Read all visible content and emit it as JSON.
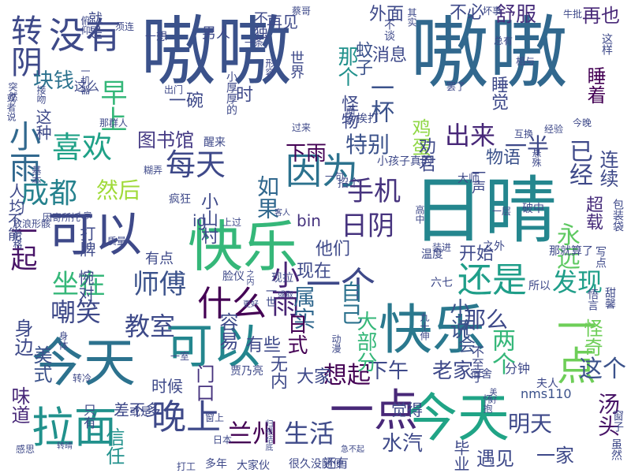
{
  "words": [
    {
      "text": "嗷嗷",
      "color": "#3b528b"
    },
    {
      "text": "嗷嗷",
      "color": "#31688e"
    },
    {
      "text": "日晴",
      "color": "#24868e"
    },
    {
      "text": "快乐",
      "color": "#35b779"
    },
    {
      "text": "快乐",
      "color": "#2a788e"
    },
    {
      "text": "今天",
      "color": "#2c728e"
    },
    {
      "text": "今天",
      "color": "#20a486"
    },
    {
      "text": "可以",
      "color": "#24868e"
    },
    {
      "text": "可以",
      "color": "#3e4989"
    },
    {
      "text": "拉面",
      "color": "#21918c"
    },
    {
      "text": "一点",
      "color": "#482878"
    },
    {
      "text": "一点",
      "color": "#6ece58"
    },
    {
      "text": "没有",
      "color": "#3e4a89"
    },
    {
      "text": "因为",
      "color": "#2c728e"
    },
    {
      "text": "什么",
      "color": "#440154"
    },
    {
      "text": "一个",
      "color": "#3e4989"
    },
    {
      "text": "还是",
      "color": "#1f9e89"
    },
    {
      "text": "晚上",
      "color": "#3e4989"
    },
    {
      "text": "喜欢",
      "color": "#1fa187"
    },
    {
      "text": "转阴",
      "color": "#3e4989"
    },
    {
      "text": "小雨",
      "color": "#31688e"
    },
    {
      "text": "每天",
      "color": "#3e4989"
    },
    {
      "text": "成都",
      "color": "#26828e"
    },
    {
      "text": "手机",
      "color": "#46337e"
    },
    {
      "text": "坐在",
      "color": "#35b779"
    },
    {
      "text": "师傅",
      "color": "#3b528b"
    },
    {
      "text": "日阴",
      "color": "#46337e"
    },
    {
      "text": "发现",
      "color": "#1f9e89"
    },
    {
      "text": "早上",
      "color": "#35b779"
    },
    {
      "text": "小雨",
      "color": "#482475"
    },
    {
      "text": "教室",
      "color": "#3e4a89"
    },
    {
      "text": "嘲笑",
      "color": "#3e4989"
    },
    {
      "text": "兰州",
      "color": "#440154"
    },
    {
      "text": "生活",
      "color": "#3e4a89"
    },
    {
      "text": "块钱",
      "color": "#2c728e"
    },
    {
      "text": "一杯",
      "color": "#3b528b"
    },
    {
      "text": "出来",
      "color": "#482878"
    },
    {
      "text": "特别",
      "color": "#3b528b"
    },
    {
      "text": "一半",
      "color": "#3e4989"
    },
    {
      "text": "已经",
      "color": "#3e4989"
    },
    {
      "text": "两个",
      "color": "#35b779"
    },
    {
      "text": "这个",
      "color": "#3b528b"
    },
    {
      "text": "想起",
      "color": "#440154"
    },
    {
      "text": "一起",
      "color": "#481467"
    },
    {
      "text": "舒服",
      "color": "#472d7b"
    },
    {
      "text": "那个",
      "color": "#21918c"
    },
    {
      "text": "属实",
      "color": "#31688e"
    },
    {
      "text": "自己",
      "color": "#2c728e"
    },
    {
      "text": "明天",
      "color": "#3e4989"
    },
    {
      "text": "永远",
      "color": "#5ec962"
    },
    {
      "text": "然后",
      "color": "#a0da39"
    },
    {
      "text": "如果",
      "color": "#31688e"
    },
    {
      "text": "下雨",
      "color": "#440154"
    },
    {
      "text": "鸡蛋",
      "color": "#8fd744"
    },
    {
      "text": "图书馆",
      "color": "#443983"
    },
    {
      "text": "日式",
      "color": "#440154"
    },
    {
      "text": "下午",
      "color": "#3e4989"
    },
    {
      "text": "老家",
      "color": "#3e4989"
    },
    {
      "text": "汤头",
      "color": "#481467"
    },
    {
      "text": "美式",
      "color": "#3b528b"
    },
    {
      "text": "味道",
      "color": "#482878"
    },
    {
      "text": "信任",
      "color": "#21918c"
    },
    {
      "text": "身边",
      "color": "#3e4989"
    },
    {
      "text": "水汽",
      "color": "#3e4989"
    },
    {
      "text": "遇见",
      "color": "#3e4989"
    },
    {
      "text": "一家",
      "color": "#3e4989"
    },
    {
      "text": "再也",
      "color": "#482878"
    },
    {
      "text": "睡着",
      "color": "#440154"
    },
    {
      "text": "连续",
      "color": "#3e4989"
    },
    {
      "text": "那么",
      "color": "#3e4989"
    },
    {
      "text": "小说",
      "color": "#3b528b"
    },
    {
      "text": "大部分",
      "color": "#35b779"
    },
    {
      "text": "怪奇",
      "color": "#6ece58"
    },
    {
      "text": "有些",
      "color": "#3e4989"
    },
    {
      "text": "门口",
      "color": "#46337e"
    },
    {
      "text": "大家",
      "color": "#3e4989"
    },
    {
      "text": "容易",
      "color": "#3e4989"
    },
    {
      "text": "无内",
      "color": "#3e4989"
    },
    {
      "text": "不会",
      "color": "#3b528b"
    },
    {
      "text": "他们",
      "color": "#3e4989"
    },
    {
      "text": "现在",
      "color": "#3e4989"
    },
    {
      "text": "开始",
      "color": "#3e4989"
    },
    {
      "text": "小山村",
      "color": "#3e4989"
    },
    {
      "text": "怪物",
      "color": "#3e4989"
    },
    {
      "text": "蚊子",
      "color": "#3b528b"
    },
    {
      "text": "消息",
      "color": "#3e4989"
    },
    {
      "text": "外面",
      "color": "#3e4989"
    },
    {
      "text": "物语",
      "color": "#3b528b"
    },
    {
      "text": "睡觉",
      "color": "#3e4989"
    },
    {
      "text": "超载",
      "color": "#472d7b"
    },
    {
      "text": "时候",
      "color": "#3e4989"
    },
    {
      "text": "差不多",
      "color": "#3e4989"
    },
    {
      "text": "人均",
      "color": "#3e4989"
    },
    {
      "text": "这种",
      "color": "#3e4989"
    },
    {
      "text": "打牌",
      "color": "#3e4989"
    },
    {
      "text": "惋对",
      "color": "#3e4989"
    },
    {
      "text": "觉得",
      "color": "#3e4989"
    },
    {
      "text": "bin",
      "color": "#46337e"
    },
    {
      "text": "ig",
      "color": "#3e4989"
    },
    {
      "text": "nms110",
      "color": "#3b528b"
    },
    {
      "text": "劝君",
      "color": "#3e4989"
    },
    {
      "text": "不必",
      "color": "#3e4989"
    },
    {
      "text": "一碗",
      "color": "#3e4989"
    },
    {
      "text": "再见",
      "color": "#3e4989"
    },
    {
      "text": "就是",
      "color": "#3e4989"
    },
    {
      "text": "男人",
      "color": "#3e4989"
    },
    {
      "text": "不独",
      "color": "#3e4989"
    },
    {
      "text": "世界",
      "color": "#3e4989"
    },
    {
      "text": "一声",
      "color": "#3e4989"
    },
    {
      "text": "分钟",
      "color": "#3e4989"
    },
    {
      "text": "不至于",
      "color": "#3e4989"
    },
    {
      "text": "这么",
      "color": "#3e4989"
    },
    {
      "text": "时",
      "color": "#3e4989"
    },
    {
      "text": "有点",
      "color": "#3e4989"
    },
    {
      "text": "或是",
      "color": "#3e4989"
    },
    {
      "text": "只有",
      "color": "#3e4989"
    },
    {
      "text": "不能",
      "color": "#3e4989"
    },
    {
      "text": "还有",
      "color": "#3e4989"
    },
    {
      "text": "很久没随便",
      "color": "#3e4989"
    },
    {
      "text": "大家伙",
      "color": "#3e4989"
    },
    {
      "text": "多年",
      "color": "#3e4989"
    },
    {
      "text": "打工",
      "color": "#3e4989"
    },
    {
      "text": "毕业",
      "color": "#3e4989"
    },
    {
      "text": "窗子",
      "color": "#3e4989"
    },
    {
      "text": "夫人",
      "color": "#3e4989"
    },
    {
      "text": "宿舍",
      "color": "#3e4989"
    },
    {
      "text": "怀抱",
      "color": "#3e4989"
    },
    {
      "text": "贾乃亮",
      "color": "#3e4989"
    },
    {
      "text": "一世",
      "color": "#3e4989"
    },
    {
      "text": "脸仪",
      "color": "#3e4989"
    },
    {
      "text": "现拉",
      "color": "#3e4989"
    },
    {
      "text": "六七",
      "color": "#3e4989"
    },
    {
      "text": "九十伸",
      "color": "#3e4989"
    },
    {
      "text": "装进",
      "color": "#3e4989"
    },
    {
      "text": "温度",
      "color": "#3e4989"
    },
    {
      "text": "之外",
      "color": "#3e4989"
    },
    {
      "text": "那就算了",
      "color": "#3e4989"
    },
    {
      "text": "所以",
      "color": "#3e4989"
    },
    {
      "text": "悟言",
      "color": "#3e4989"
    },
    {
      "text": "写点",
      "color": "#3e4989"
    },
    {
      "text": "包装袋",
      "color": "#3e4989"
    },
    {
      "text": "甜馨",
      "color": "#3e4989"
    },
    {
      "text": "大师",
      "color": "#3e4989"
    },
    {
      "text": "高中",
      "color": "#3e4989"
    },
    {
      "text": "一层",
      "color": "#3e4989"
    },
    {
      "text": "破中",
      "color": "#3e4989"
    },
    {
      "text": "经验",
      "color": "#3e4989"
    },
    {
      "text": "今晚",
      "color": "#3e4989"
    },
    {
      "text": "互换",
      "color": "#3e4989"
    },
    {
      "text": "悬殊",
      "color": "#3e4989"
    },
    {
      "text": "一句",
      "color": "#3e4989"
    },
    {
      "text": "招个",
      "color": "#3e4989"
    },
    {
      "text": "小孩子真的",
      "color": "#3e4989"
    },
    {
      "text": "醒来",
      "color": "#3e4989"
    },
    {
      "text": "挨打",
      "color": "#3e4989"
    },
    {
      "text": "过来",
      "color": "#3e4989"
    },
    {
      "text": "面条",
      "color": "#3e4989"
    },
    {
      "text": "小厚厚的",
      "color": "#3e4989"
    },
    {
      "text": "一条",
      "color": "#3e4989"
    },
    {
      "text": "形容",
      "color": "#3e4989"
    },
    {
      "text": "蔡哥",
      "color": "#3e4989"
    },
    {
      "text": "不谈",
      "color": "#3e4989"
    },
    {
      "text": "其实",
      "color": "#3e4989"
    },
    {
      "text": "坏事",
      "color": "#3e4989"
    },
    {
      "text": "牛批",
      "color": "#3e4989"
    },
    {
      "text": "这样",
      "color": "#3e4989"
    },
    {
      "text": "总有",
      "color": "#3e4989"
    },
    {
      "text": "相与",
      "color": "#3e4989"
    },
    {
      "text": "出门",
      "color": "#3e4989"
    },
    {
      "text": "或者说",
      "color": "#3e4989"
    },
    {
      "text": "接吻",
      "color": "#3e4989"
    },
    {
      "text": "一机器",
      "color": "#3e4989"
    },
    {
      "text": "俯仰",
      "color": "#3e4989"
    },
    {
      "text": "一想",
      "color": "#3e4989"
    },
    {
      "text": "须连",
      "color": "#3e4989"
    },
    {
      "text": "突然",
      "color": "#3e4989"
    },
    {
      "text": "疯狂",
      "color": "#3e4989"
    },
    {
      "text": "糊弄",
      "color": "#3e4989"
    },
    {
      "text": "那群人",
      "color": "#3e4989"
    },
    {
      "text": "基本",
      "color": "#3e4989"
    },
    {
      "text": "因寄所托",
      "color": "#3e4989"
    },
    {
      "text": "人家",
      "color": "#3e4989"
    },
    {
      "text": "客人",
      "color": "#3e4989"
    },
    {
      "text": "上过",
      "color": "#3e4989"
    },
    {
      "text": "质量",
      "color": "#3e4989"
    },
    {
      "text": "价格",
      "color": "#3e4989"
    },
    {
      "text": "放浪形骸",
      "color": "#3e4989"
    },
    {
      "text": "之内",
      "color": "#3e4989"
    },
    {
      "text": "更好",
      "color": "#3e4989"
    },
    {
      "text": "或取",
      "color": "#3e4989"
    },
    {
      "text": "一室",
      "color": "#3e4989"
    },
    {
      "text": "身体",
      "color": "#3e4989"
    },
    {
      "text": "转冷",
      "color": "#3e4989"
    },
    {
      "text": "感思",
      "color": "#3e4989"
    },
    {
      "text": "窗上",
      "color": "#3e4989"
    },
    {
      "text": "日本",
      "color": "#3e4989"
    },
    {
      "text": "转晴",
      "color": "#3e4989"
    },
    {
      "text": "归根结底",
      "color": "#3e4989"
    },
    {
      "text": "动漫",
      "color": "#3e4989"
    },
    {
      "text": "美好",
      "color": "#3e4989"
    },
    {
      "text": "急不起",
      "color": "#3e4989"
    },
    {
      "text": "虽然",
      "color": "#3e4989"
    },
    {
      "text": "罢了",
      "color": "#3e4989"
    }
  ]
}
